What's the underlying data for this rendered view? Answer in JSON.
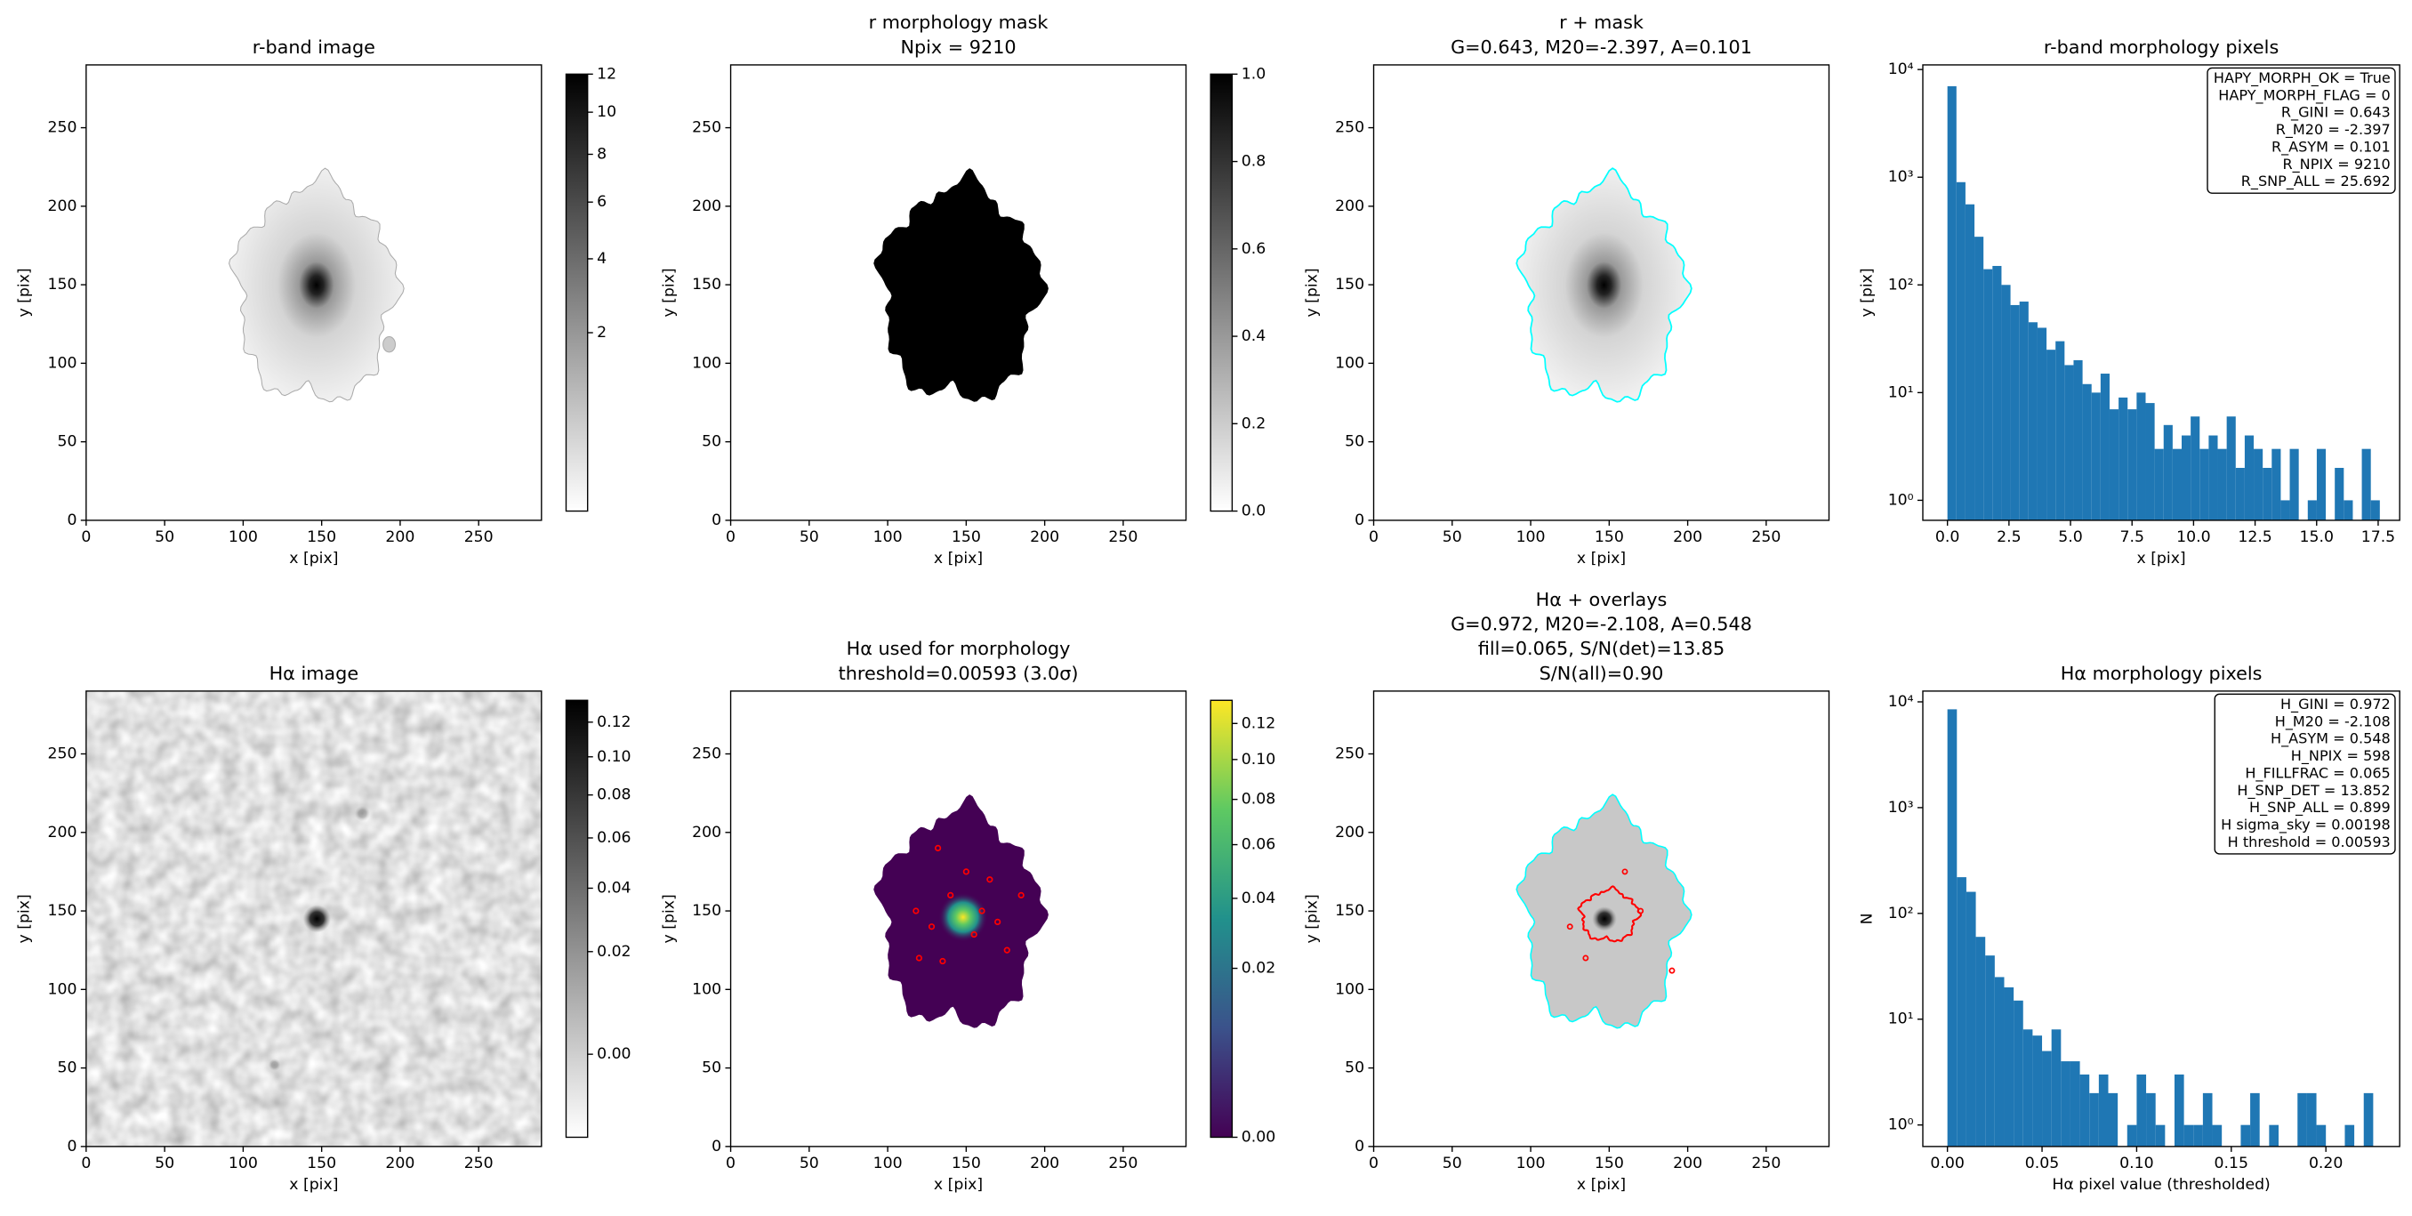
{
  "chart_data": [
    {
      "type": "image",
      "title": [
        "r-band image"
      ],
      "xlabel": "x [pix]",
      "ylabel": "y [pix]",
      "xlim": [
        0,
        290
      ],
      "ylim": [
        0,
        290
      ],
      "xticks": [
        0,
        50,
        100,
        150,
        200,
        250
      ],
      "yticks": [
        0,
        50,
        100,
        150,
        200,
        250
      ],
      "cmap": "gray_r",
      "clim": [
        0,
        12
      ],
      "cscale": "sqrt",
      "cticks": [
        2,
        4,
        6,
        8,
        10,
        12
      ]
    },
    {
      "type": "image",
      "title": [
        "r morphology mask",
        "Npix = 9210"
      ],
      "xlabel": "x [pix]",
      "ylabel": "y [pix]",
      "xlim": [
        0,
        290
      ],
      "ylim": [
        0,
        290
      ],
      "xticks": [
        0,
        50,
        100,
        150,
        200,
        250
      ],
      "yticks": [
        0,
        50,
        100,
        150,
        200,
        250
      ],
      "cmap": "gray_r",
      "clim": [
        0,
        1
      ],
      "cscale": "linear",
      "cticks": [
        {
          "value": 0,
          "label": "0.0"
        },
        {
          "value": 0.2,
          "label": "0.2"
        },
        {
          "value": 0.4,
          "label": "0.4"
        },
        {
          "value": 0.6,
          "label": "0.6"
        },
        {
          "value": 0.8,
          "label": "0.8"
        },
        {
          "value": 1,
          "label": "1.0"
        }
      ]
    },
    {
      "type": "image",
      "title": [
        "r + mask",
        "G=0.643, M20=-2.397, A=0.101"
      ],
      "xlabel": "x [pix]",
      "ylabel": "y [pix]",
      "xlim": [
        0,
        290
      ],
      "ylim": [
        0,
        290
      ],
      "xticks": [
        0,
        50,
        100,
        150,
        200,
        250
      ],
      "yticks": [
        0,
        50,
        100,
        150,
        200,
        250
      ],
      "cmap": "gray_r",
      "contour_colors": [
        "cyan"
      ]
    },
    {
      "type": "histogram",
      "title": [
        "r-band morphology pixels"
      ],
      "xlabel": "x [pix]",
      "ylabel": "y [pix]",
      "color": "#1f77b4",
      "log_y": true,
      "bins": [
        0,
        0.366,
        0.732,
        1.098,
        1.464,
        1.83,
        2.196,
        2.562,
        2.928,
        3.294,
        3.66,
        4.026,
        4.392,
        4.758,
        5.124,
        5.49,
        5.856,
        6.222,
        6.588,
        6.954,
        7.32,
        7.686,
        8.052,
        8.418,
        8.784,
        9.15,
        9.516,
        9.882,
        10.248,
        10.614,
        10.98,
        11.346,
        11.712,
        12.078,
        12.444,
        12.81,
        13.176,
        13.542,
        13.908,
        14.274,
        14.64,
        15.006,
        15.372,
        15.738,
        16.104,
        16.47,
        16.836,
        17.202,
        17.568
      ],
      "counts": [
        7000,
        900,
        560,
        280,
        140,
        150,
        100,
        65,
        70,
        45,
        40,
        25,
        30,
        18,
        20,
        12,
        10,
        15,
        7,
        9,
        7,
        10,
        8,
        3,
        5,
        3,
        4,
        6,
        3,
        4,
        3,
        6,
        2,
        4,
        3,
        2,
        3,
        1,
        3,
        0,
        1,
        3,
        0,
        2,
        1,
        0,
        3,
        1
      ],
      "xlim": [
        -1,
        18.375
      ],
      "ylim": [
        0.652,
        11040
      ],
      "xticks": [
        {
          "value": 0,
          "label": "0.0"
        },
        {
          "value": 2.5,
          "label": "2.5"
        },
        {
          "value": 5,
          "label": "5.0"
        },
        {
          "value": 7.5,
          "label": "7.5"
        },
        {
          "value": 10,
          "label": "10.0"
        },
        {
          "value": 12.5,
          "label": "12.5"
        },
        {
          "value": 15,
          "label": "15.0"
        },
        {
          "value": 17.5,
          "label": "17.5"
        }
      ],
      "yticks": [
        {
          "value": 1,
          "label": "10⁰"
        },
        {
          "value": 10,
          "label": "10¹"
        },
        {
          "value": 100,
          "label": "10²"
        },
        {
          "value": 1000,
          "label": "10³"
        },
        {
          "value": 10000,
          "label": "10⁴"
        }
      ],
      "stats": [
        "HAPY_MORPH_OK = True",
        "HAPY_MORPH_FLAG = 0",
        "R_GINI = 0.643",
        "R_M20 = -2.397",
        "R_ASYM = 0.101",
        "R_NPIX = 9210",
        "R_SNP_ALL = 25.692"
      ]
    },
    {
      "type": "image",
      "title": [
        "Hα image"
      ],
      "xlabel": "x [pix]",
      "ylabel": "y [pix]",
      "xlim": [
        0,
        290
      ],
      "ylim": [
        0,
        290
      ],
      "xticks": [
        0,
        50,
        100,
        150,
        200,
        250
      ],
      "yticks": [
        0,
        50,
        100,
        150,
        200,
        250
      ],
      "cmap": "gray_r",
      "clim": [
        -0.005,
        0.1335
      ],
      "cscale": "sqrt",
      "cticks": [
        {
          "value": 0,
          "label": "0.00"
        },
        {
          "value": 0.02,
          "label": "0.02"
        },
        {
          "value": 0.04,
          "label": "0.04"
        },
        {
          "value": 0.06,
          "label": "0.06"
        },
        {
          "value": 0.08,
          "label": "0.08"
        },
        {
          "value": 0.1,
          "label": "0.10"
        },
        {
          "value": 0.12,
          "label": "0.12"
        }
      ]
    },
    {
      "type": "image",
      "title": [
        "Hα used for morphology",
        "threshold=0.00593 (3.0σ)"
      ],
      "xlabel": "x [pix]",
      "ylabel": "y [pix]",
      "xlim": [
        0,
        290
      ],
      "ylim": [
        0,
        290
      ],
      "xticks": [
        0,
        50,
        100,
        150,
        200,
        250
      ],
      "yticks": [
        0,
        50,
        100,
        150,
        200,
        250
      ],
      "cmap": "viridis",
      "clim": [
        0,
        0.1338
      ],
      "cscale": "sqrt",
      "contour_colors": [
        "red"
      ],
      "cticks": [
        {
          "value": 0,
          "label": "0.00"
        },
        {
          "value": 0.02,
          "label": "0.02"
        },
        {
          "value": 0.04,
          "label": "0.04"
        },
        {
          "value": 0.06,
          "label": "0.06"
        },
        {
          "value": 0.08,
          "label": "0.08"
        },
        {
          "value": 0.1,
          "label": "0.10"
        },
        {
          "value": 0.12,
          "label": "0.12"
        }
      ]
    },
    {
      "type": "image",
      "title": [
        "Hα + overlays",
        "G=0.972, M20=-2.108, A=0.548",
        "fill=0.065, S/N(det)=13.85",
        "S/N(all)=0.90"
      ],
      "xlabel": "x [pix]",
      "ylabel": "y [pix]",
      "xlim": [
        0,
        290
      ],
      "ylim": [
        0,
        290
      ],
      "xticks": [
        0,
        50,
        100,
        150,
        200,
        250
      ],
      "yticks": [
        0,
        50,
        100,
        150,
        200,
        250
      ],
      "cmap": "gray_r",
      "contour_colors": [
        "cyan",
        "red"
      ]
    },
    {
      "type": "histogram",
      "title": [
        "Hα morphology pixels"
      ],
      "xlabel": "Hα pixel value (thresholded)",
      "ylabel": "N",
      "color": "#1f77b4",
      "log_y": true,
      "bins": [
        0,
        0.005,
        0.01,
        0.015,
        0.02,
        0.025,
        0.03,
        0.035,
        0.04,
        0.045,
        0.05,
        0.055,
        0.06,
        0.065,
        0.07,
        0.075,
        0.08,
        0.085,
        0.09,
        0.095,
        0.1,
        0.105,
        0.11,
        0.115,
        0.12,
        0.125,
        0.13,
        0.135,
        0.14,
        0.145,
        0.15,
        0.155,
        0.16,
        0.165,
        0.17,
        0.175,
        0.18,
        0.185,
        0.19,
        0.195,
        0.2,
        0.205,
        0.21,
        0.215,
        0.22,
        0.225
      ],
      "counts": [
        8500,
        220,
        160,
        60,
        40,
        25,
        20,
        15,
        8,
        7,
        5,
        8,
        4,
        4,
        3,
        2,
        3,
        2,
        0,
        1,
        3,
        2,
        1,
        0,
        3,
        1,
        1,
        2,
        1,
        0,
        0,
        1,
        2,
        0,
        1,
        0,
        0,
        2,
        2,
        1,
        0,
        0,
        1,
        0,
        2
      ],
      "xlim": [
        -0.013,
        0.239
      ],
      "ylim": [
        0.626,
        12640
      ],
      "xticks": [
        {
          "value": 0,
          "label": "0.00"
        },
        {
          "value": 0.05,
          "label": "0.05"
        },
        {
          "value": 0.1,
          "label": "0.10"
        },
        {
          "value": 0.15,
          "label": "0.15"
        },
        {
          "value": 0.2,
          "label": "0.20"
        }
      ],
      "yticks": [
        {
          "value": 1,
          "label": "10⁰"
        },
        {
          "value": 10,
          "label": "10¹"
        },
        {
          "value": 100,
          "label": "10²"
        },
        {
          "value": 1000,
          "label": "10³"
        },
        {
          "value": 10000,
          "label": "10⁴"
        }
      ],
      "stats": [
        "H_GINI = 0.972",
        "H_M20 = -2.108",
        "H_ASYM = 0.548",
        "H_NPIX = 598",
        "H_FILLFRAC = 0.065",
        "H_SNP_DET = 13.852",
        "H_SNP_ALL = 0.899",
        "H sigma_sky = 0.00198",
        "H threshold = 0.00593"
      ]
    }
  ]
}
